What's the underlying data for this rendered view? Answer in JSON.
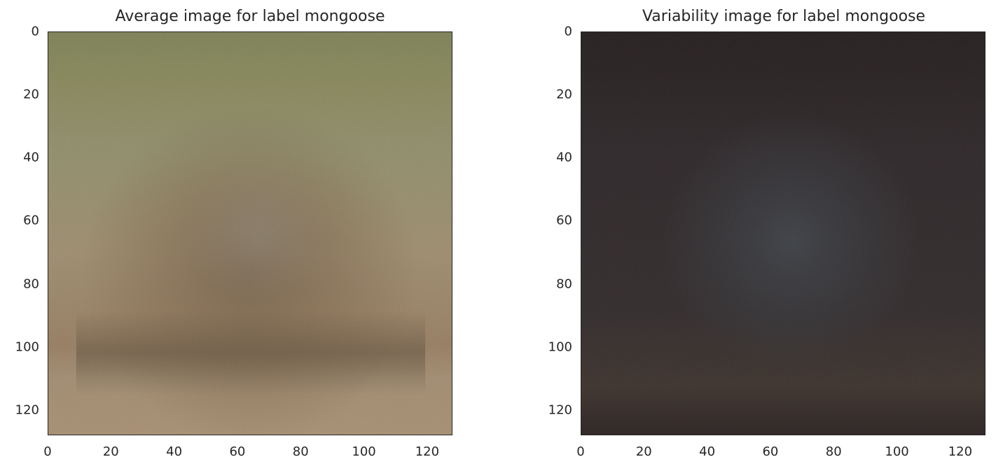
{
  "chart_data": [
    {
      "type": "heatmap",
      "title": "Average image for label mongoose",
      "xlabel": "",
      "ylabel": "",
      "xlim": [
        0,
        128
      ],
      "ylim": [
        128,
        0
      ],
      "x_ticks": [
        "0",
        "20",
        "40",
        "60",
        "80",
        "100",
        "120"
      ],
      "y_ticks": [
        "0",
        "20",
        "40",
        "60",
        "80",
        "100",
        "120"
      ],
      "grid": false,
      "image_content": "blurry RGB mean image: green grass at top, brown mongoose-shaped blob in center, sandy ground at bottom",
      "colors": {
        "top": "#7b7f52",
        "upper": "#8f8c68",
        "middle": "#9c8a6c",
        "center_blob": "#7a6247",
        "dark_band": "#6d5a42",
        "bottom": "#a68d6f"
      }
    },
    {
      "type": "heatmap",
      "title": "Variability image for label mongoose",
      "xlabel": "",
      "ylabel": "",
      "xlim": [
        0,
        128
      ],
      "ylim": [
        128,
        0
      ],
      "x_ticks": [
        "0",
        "20",
        "40",
        "60",
        "80",
        "100",
        "120"
      ],
      "y_ticks": [
        "0",
        "20",
        "40",
        "60",
        "80",
        "100",
        "120"
      ],
      "grid": false,
      "image_content": "dark RGB standard-deviation image: near-black brown background with faint bluish-gray center",
      "colors": {
        "base": "#2e2524",
        "edge": "#231c1c",
        "center": "#3a3d42",
        "lower": "#3b312b"
      }
    }
  ]
}
